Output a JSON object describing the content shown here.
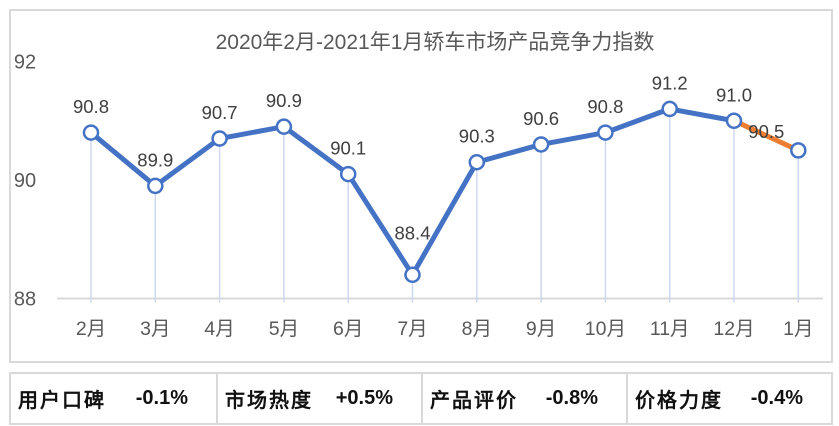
{
  "chart_data": {
    "type": "line",
    "title": "2020年2月-2021年1月轿车市场产品竞争力指数",
    "categories": [
      "2月",
      "3月",
      "4月",
      "5月",
      "6月",
      "7月",
      "8月",
      "9月",
      "10月",
      "11月",
      "12月",
      "1月"
    ],
    "values": [
      90.8,
      89.9,
      90.7,
      90.9,
      90.1,
      88.4,
      90.3,
      90.6,
      90.8,
      91.2,
      91.0,
      90.5
    ],
    "xlabel": "",
    "ylabel": "",
    "ylim": [
      88,
      92
    ],
    "yticks": [
      88,
      90,
      92
    ],
    "grid": "off",
    "legend": "none",
    "line_color": "#4472C4",
    "last_segment_color": "#ED7D31",
    "marker_fill": "#FFFFFF",
    "marker_stroke": "#4472C4",
    "dropline_color": "#CDD9F1",
    "axis_line_color": "#D9D9D9",
    "title_color": "#595959",
    "tick_label_color": "#595959",
    "value_label_color": "#3F3F3F",
    "label_offsets": {
      "5": [
        0,
        -42
      ],
      "11": [
        -32,
        -19
      ]
    }
  },
  "stats": {
    "items": [
      {
        "label": "用户口碑",
        "value": "-0.1%"
      },
      {
        "label": "市场热度",
        "value": "+0.5%"
      },
      {
        "label": "产品评价",
        "value": "-0.8%"
      },
      {
        "label": "价格力度",
        "value": "-0.4%"
      }
    ]
  }
}
